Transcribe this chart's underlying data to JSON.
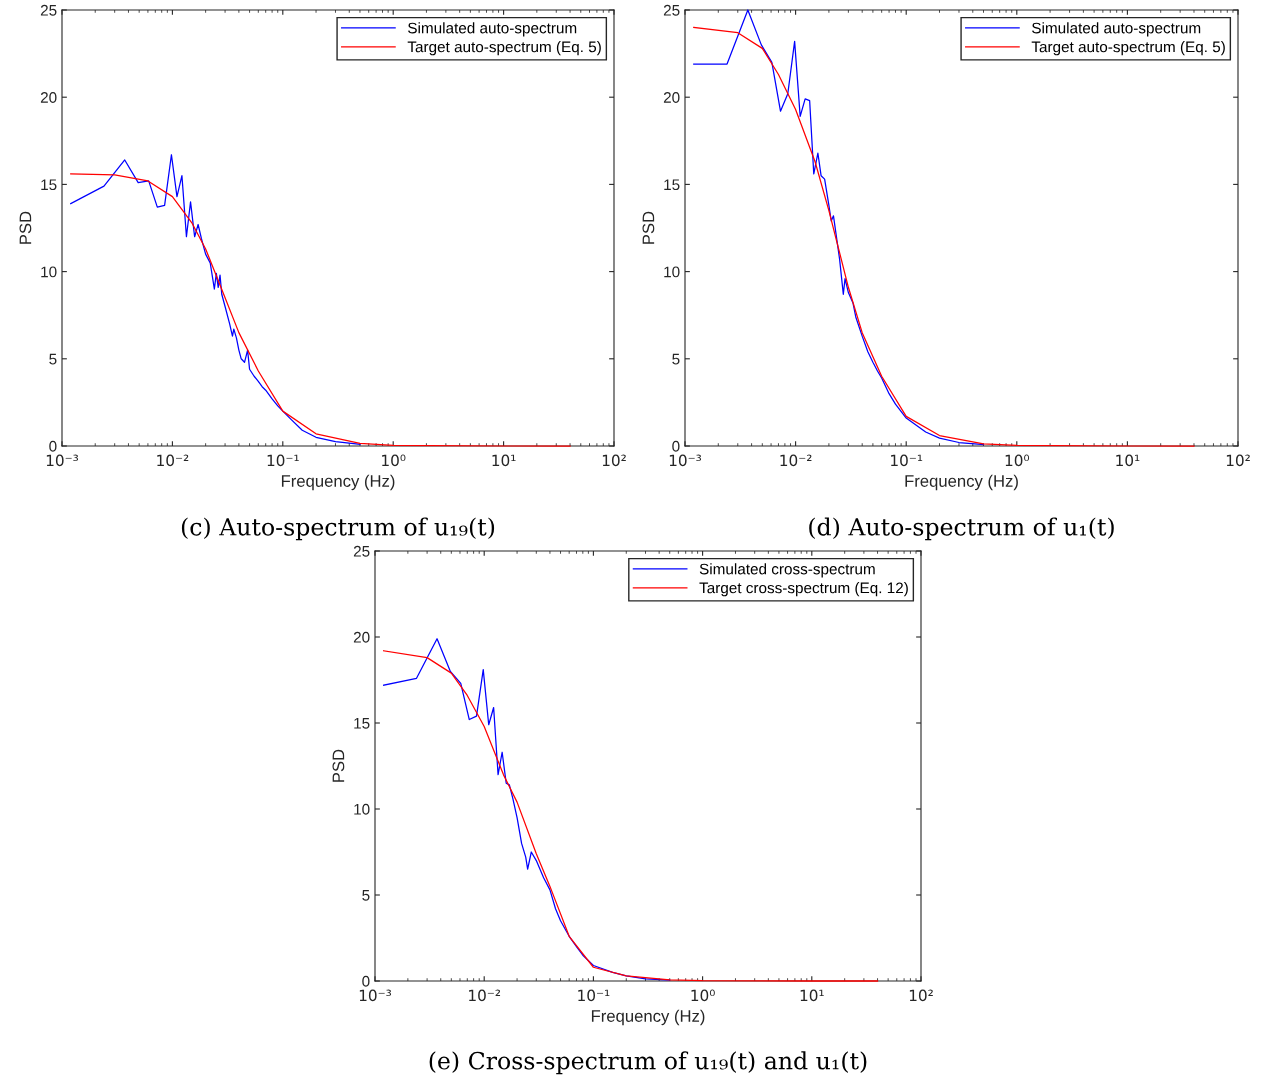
{
  "chart_data": [
    {
      "type": "line",
      "xlabel": "Frequency (Hz)",
      "ylabel": "PSD",
      "log": "x",
      "grid": false,
      "legend": "top right",
      "xlim": [
        0.001,
        100
      ],
      "xticks": [
        {
          "value": 0.001,
          "label": "10⁻³"
        },
        {
          "value": 0.01,
          "label": "10⁻²"
        },
        {
          "value": 0.1,
          "label": "10⁻¹"
        },
        {
          "value": 1,
          "label": "10⁰"
        },
        {
          "value": 10,
          "label": "10¹"
        },
        {
          "value": 100,
          "label": "10²"
        }
      ],
      "ylim": [
        0,
        25
      ],
      "yticks": [
        0,
        5,
        10,
        15,
        20,
        25
      ],
      "annotations": [
        "(c) Auto-spectrum of u₁₉(t)"
      ],
      "series": [
        {
          "name": "Simulated auto-spectrum",
          "color": "#0000ff",
          "x": [
            0.0012,
            0.0024,
            0.0037,
            0.0049,
            0.0061,
            0.0073,
            0.0085,
            0.0098,
            0.011,
            0.0122,
            0.0134,
            0.0146,
            0.0159,
            0.0171,
            0.0183,
            0.02,
            0.022,
            0.024,
            0.025,
            0.026,
            0.027,
            0.028,
            0.03,
            0.033,
            0.035,
            0.036,
            0.038,
            0.04,
            0.042,
            0.045,
            0.048,
            0.05,
            0.055,
            0.06,
            0.065,
            0.07,
            0.08,
            0.09,
            0.1,
            0.12,
            0.15,
            0.2,
            0.3,
            0.5
          ],
          "values": [
            13.9,
            14.9,
            16.4,
            15.1,
            15.2,
            13.7,
            13.8,
            16.7,
            14.3,
            15.5,
            12.0,
            14.0,
            12.0,
            12.7,
            11.9,
            11.0,
            10.5,
            9.0,
            9.9,
            9.1,
            9.8,
            8.7,
            8.0,
            7.0,
            6.3,
            6.7,
            6.2,
            5.5,
            5.0,
            4.8,
            5.5,
            4.4,
            4.0,
            3.7,
            3.4,
            3.2,
            2.7,
            2.3,
            2.0,
            1.5,
            0.9,
            0.5,
            0.25,
            0.1
          ]
        },
        {
          "name": "Target auto-spectrum (Eq. 5)",
          "color": "#ff0000",
          "x": [
            0.0012,
            0.003,
            0.006,
            0.01,
            0.015,
            0.02,
            0.03,
            0.04,
            0.06,
            0.1,
            0.2,
            0.5,
            1,
            10,
            40
          ],
          "values": [
            15.6,
            15.55,
            15.2,
            14.3,
            12.8,
            11.3,
            8.5,
            6.5,
            4.3,
            2.0,
            0.7,
            0.15,
            0.04,
            0,
            0
          ]
        }
      ]
    },
    {
      "type": "line",
      "xlabel": "Frequency (Hz)",
      "ylabel": "PSD",
      "log": "x",
      "grid": false,
      "legend": "top right",
      "xlim": [
        0.001,
        100
      ],
      "xticks": [
        {
          "value": 0.001,
          "label": "10⁻³"
        },
        {
          "value": 0.01,
          "label": "10⁻²"
        },
        {
          "value": 0.1,
          "label": "10⁻¹"
        },
        {
          "value": 1,
          "label": "10⁰"
        },
        {
          "value": 10,
          "label": "10¹"
        },
        {
          "value": 100,
          "label": "10²"
        }
      ],
      "ylim": [
        0,
        25
      ],
      "yticks": [
        0,
        5,
        10,
        15,
        20,
        25
      ],
      "annotations": [
        "(d) Auto-spectrum of u₁(t)"
      ],
      "series": [
        {
          "name": "Simulated auto-spectrum",
          "color": "#0000ff",
          "x": [
            0.0012,
            0.0024,
            0.0037,
            0.0049,
            0.0061,
            0.0073,
            0.0085,
            0.0098,
            0.011,
            0.0122,
            0.0134,
            0.0146,
            0.0159,
            0.017,
            0.0183,
            0.02,
            0.021,
            0.022,
            0.024,
            0.025,
            0.027,
            0.028,
            0.03,
            0.033,
            0.035,
            0.04,
            0.045,
            0.05,
            0.055,
            0.06,
            0.07,
            0.08,
            0.1,
            0.15,
            0.2,
            0.3,
            0.5
          ],
          "values": [
            21.9,
            21.9,
            25,
            23.0,
            22.0,
            19.2,
            20.2,
            23.2,
            18.9,
            19.9,
            19.8,
            15.6,
            16.8,
            15.5,
            15.3,
            13.8,
            12.9,
            13.2,
            11.5,
            10.7,
            8.7,
            9.6,
            8.8,
            8.2,
            7.4,
            6.3,
            5.4,
            4.8,
            4.3,
            3.9,
            3.0,
            2.4,
            1.6,
            0.8,
            0.45,
            0.2,
            0.08
          ]
        },
        {
          "name": "Target auto-spectrum (Eq. 5)",
          "color": "#ff0000",
          "x": [
            0.0012,
            0.003,
            0.005,
            0.007,
            0.01,
            0.015,
            0.02,
            0.03,
            0.04,
            0.06,
            0.1,
            0.2,
            0.5,
            1,
            10,
            40
          ],
          "values": [
            24.0,
            23.7,
            22.8,
            21.3,
            19.3,
            16.3,
            13.5,
            9.1,
            6.5,
            4.0,
            1.7,
            0.6,
            0.12,
            0.03,
            0,
            0
          ]
        }
      ]
    },
    {
      "type": "line",
      "xlabel": "Frequency (Hz)",
      "ylabel": "PSD",
      "log": "x",
      "grid": false,
      "legend": "top right",
      "xlim": [
        0.001,
        100
      ],
      "xticks": [
        {
          "value": 0.001,
          "label": "10⁻³"
        },
        {
          "value": 0.01,
          "label": "10⁻²"
        },
        {
          "value": 0.1,
          "label": "10⁻¹"
        },
        {
          "value": 1,
          "label": "10⁰"
        },
        {
          "value": 10,
          "label": "10¹"
        },
        {
          "value": 100,
          "label": "10²"
        }
      ],
      "ylim": [
        0,
        25
      ],
      "yticks": [
        0,
        5,
        10,
        15,
        20,
        25
      ],
      "annotations": [
        "(e) Cross-spectrum of u₁₉(t) and u₁(t)"
      ],
      "series": [
        {
          "name": "Simulated cross-spectrum",
          "color": "#0000ff",
          "x": [
            0.0012,
            0.0024,
            0.0037,
            0.0049,
            0.0061,
            0.0073,
            0.0085,
            0.0098,
            0.011,
            0.0122,
            0.0134,
            0.0146,
            0.0159,
            0.017,
            0.0183,
            0.02,
            0.022,
            0.024,
            0.025,
            0.027,
            0.03,
            0.035,
            0.04,
            0.045,
            0.05,
            0.06,
            0.07,
            0.08,
            0.1,
            0.15,
            0.2,
            0.3,
            0.5
          ],
          "values": [
            17.2,
            17.6,
            19.9,
            18.0,
            17.3,
            15.2,
            15.4,
            18.1,
            14.9,
            15.9,
            12.0,
            13.3,
            11.5,
            11.4,
            10.6,
            9.5,
            8.0,
            7.2,
            6.5,
            7.5,
            7.0,
            6.0,
            5.3,
            4.2,
            3.5,
            2.6,
            2.0,
            1.5,
            0.9,
            0.5,
            0.3,
            0.12,
            0.05
          ]
        },
        {
          "name": "Target cross-spectrum (Eq. 12)",
          "color": "#ff0000",
          "x": [
            0.0012,
            0.003,
            0.005,
            0.007,
            0.01,
            0.015,
            0.02,
            0.03,
            0.04,
            0.06,
            0.1,
            0.2,
            0.5,
            1,
            10,
            40
          ],
          "values": [
            19.2,
            18.8,
            17.9,
            16.6,
            14.8,
            12.0,
            10.4,
            7.4,
            5.5,
            2.6,
            0.8,
            0.3,
            0.07,
            0.02,
            0,
            0
          ]
        }
      ]
    }
  ]
}
